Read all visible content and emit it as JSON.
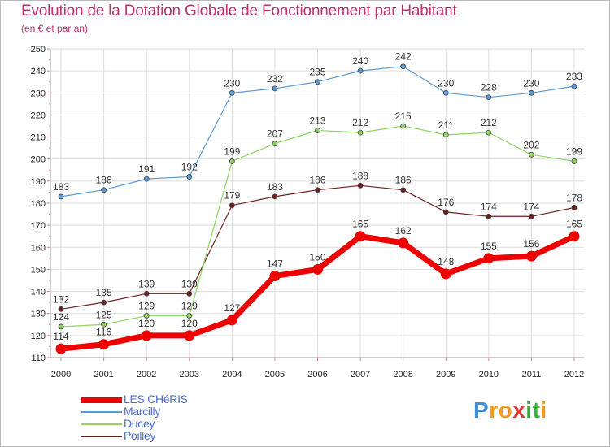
{
  "title": "Evolution de la Dotation Globale de Fonctionnement par Habitant",
  "subtitle": "(en € et par an)",
  "brand": {
    "letters": [
      {
        "ch": "P",
        "color": "#3a8fd8"
      },
      {
        "ch": "r",
        "color": "#f29a1f"
      },
      {
        "ch": "o",
        "color": "#f29a1f"
      },
      {
        "ch": "x",
        "color": "#e03b3b"
      },
      {
        "ch": "i",
        "color": "#3aae3a"
      },
      {
        "ch": "t",
        "color": "#3aae3a"
      },
      {
        "ch": "i",
        "color": "#f29a1f"
      }
    ]
  },
  "chart_data": {
    "type": "line",
    "title": "Evolution de la Dotation Globale de Fonctionnement par Habitant",
    "subtitle": "(en € et par an)",
    "xlabel": "",
    "ylabel": "",
    "ylim": [
      110,
      250
    ],
    "ytick_step": 10,
    "grid": true,
    "legend_position": "bottom-left",
    "categories": [
      "2000",
      "2001",
      "2002",
      "2003",
      "2004",
      "2005",
      "2006",
      "2007",
      "2008",
      "2009",
      "2010",
      "2011",
      "2012"
    ],
    "series": [
      {
        "name": "LES CHéRIS",
        "color": "#ee0000",
        "emphasis": true,
        "values": [
          114,
          116,
          120,
          120,
          127,
          147,
          150,
          165,
          162,
          148,
          155,
          156,
          165
        ]
      },
      {
        "name": "Marcilly",
        "color": "#5b9bd5",
        "emphasis": false,
        "values": [
          183,
          186,
          191,
          192,
          230,
          232,
          235,
          240,
          242,
          230,
          228,
          230,
          233
        ]
      },
      {
        "name": "Ducey",
        "color": "#8ed461",
        "emphasis": false,
        "values": [
          124,
          125,
          129,
          129,
          199,
          207,
          213,
          212,
          215,
          211,
          212,
          202,
          199
        ]
      },
      {
        "name": "Poilley",
        "color": "#6e2020",
        "emphasis": false,
        "values": [
          132,
          135,
          139,
          139,
          179,
          183,
          186,
          188,
          186,
          176,
          174,
          174,
          178
        ]
      }
    ]
  }
}
